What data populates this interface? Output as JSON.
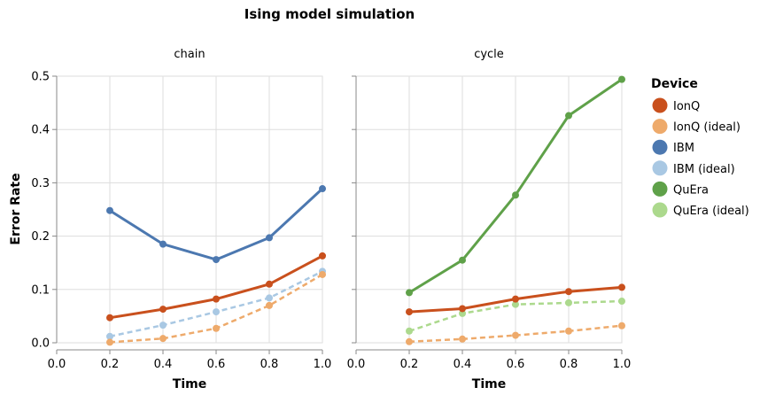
{
  "chart_data": {
    "type": "line",
    "title": "Ising model simulation",
    "xlabel": "Time",
    "ylabel": "Error Rate",
    "xlim": [
      0,
      1
    ],
    "ylim": [
      0,
      0.5
    ],
    "x_ticks": [
      "0.0",
      "0.2",
      "0.4",
      "0.6",
      "0.8",
      "1.0"
    ],
    "y_ticks": [
      "0.0",
      "0.1",
      "0.2",
      "0.3",
      "0.4",
      "0.5"
    ],
    "grid": true,
    "legend": {
      "title": "Device",
      "placement": "right",
      "entries": [
        {
          "name": "IonQ",
          "color": "#c9501d"
        },
        {
          "name": "IonQ (ideal)",
          "color": "#eeaa6b"
        },
        {
          "name": "IBM",
          "color": "#4c78b0"
        },
        {
          "name": "IBM (ideal)",
          "color": "#a9c8e3"
        },
        {
          "name": "QuEra",
          "color": "#5fa149"
        },
        {
          "name": "QuEra (ideal)",
          "color": "#acd98d"
        }
      ]
    },
    "facets": [
      {
        "title": "chain",
        "series": [
          {
            "name": "IBM",
            "color": "#4c78b0",
            "dashed": false,
            "x": [
              0.2,
              0.4,
              0.6,
              0.8,
              1.0
            ],
            "y": [
              0.248,
              0.185,
              0.156,
              0.197,
              0.289
            ]
          },
          {
            "name": "IonQ",
            "color": "#c9501d",
            "dashed": false,
            "x": [
              0.2,
              0.4,
              0.6,
              0.8,
              1.0
            ],
            "y": [
              0.047,
              0.063,
              0.082,
              0.11,
              0.163
            ]
          },
          {
            "name": "IBM (ideal)",
            "color": "#a9c8e3",
            "dashed": true,
            "x": [
              0.2,
              0.4,
              0.6,
              0.8,
              1.0
            ],
            "y": [
              0.012,
              0.033,
              0.058,
              0.084,
              0.134
            ]
          },
          {
            "name": "IonQ (ideal)",
            "color": "#eeaa6b",
            "dashed": true,
            "x": [
              0.2,
              0.4,
              0.6,
              0.8,
              1.0
            ],
            "y": [
              0.001,
              0.008,
              0.027,
              0.07,
              0.128
            ]
          }
        ]
      },
      {
        "title": "cycle",
        "series": [
          {
            "name": "QuEra",
            "color": "#5fa149",
            "dashed": false,
            "x": [
              0.2,
              0.4,
              0.6,
              0.8,
              1.0
            ],
            "y": [
              0.094,
              0.155,
              0.277,
              0.426,
              0.494
            ]
          },
          {
            "name": "IonQ",
            "color": "#c9501d",
            "dashed": false,
            "x": [
              0.2,
              0.4,
              0.6,
              0.8,
              1.0
            ],
            "y": [
              0.058,
              0.064,
              0.082,
              0.096,
              0.104
            ]
          },
          {
            "name": "QuEra (ideal)",
            "color": "#acd98d",
            "dashed": true,
            "x": [
              0.2,
              0.4,
              0.6,
              0.8,
              1.0
            ],
            "y": [
              0.022,
              0.055,
              0.072,
              0.075,
              0.078
            ]
          },
          {
            "name": "IonQ (ideal)",
            "color": "#eeaa6b",
            "dashed": true,
            "x": [
              0.2,
              0.4,
              0.6,
              0.8,
              1.0
            ],
            "y": [
              0.002,
              0.007,
              0.014,
              0.022,
              0.032
            ]
          }
        ]
      }
    ]
  }
}
